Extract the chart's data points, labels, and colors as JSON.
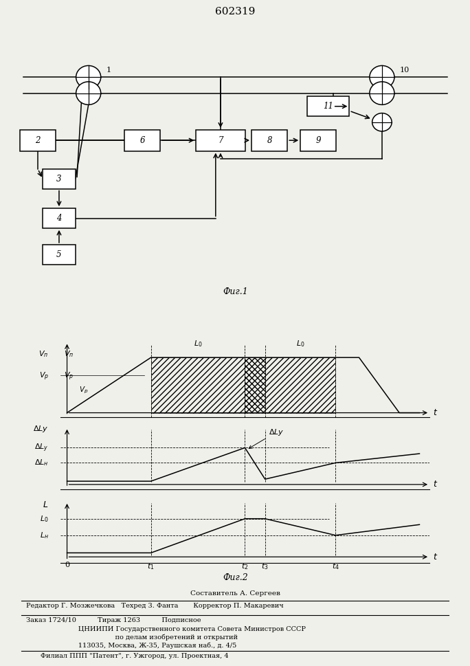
{
  "title": "602319",
  "fig1_caption": "Фиг.1",
  "fig2_caption": "Фиг.2",
  "footer_lines": [
    "Составитель А. Сергеев",
    "Редактор Г. Мозжечкова   Техред 3. Фанта       Корректор П. Макаревич",
    "Заказ 1724/10          Тираж 1263          Подписное",
    "      ЦНИИПИ Государственного комитета Совета Министров СССР",
    "            по делам изобретений и открытий",
    "      113035, Москва, Ж-35, Раушская наб., д. 4/5",
    "Филиал ППП \"Патент\", г. Ужгород, ул. Проектная, 4"
  ],
  "bg_color": "#f0f0eb",
  "t1": 0.25,
  "t2": 0.53,
  "t3": 0.59,
  "t4": 0.8
}
